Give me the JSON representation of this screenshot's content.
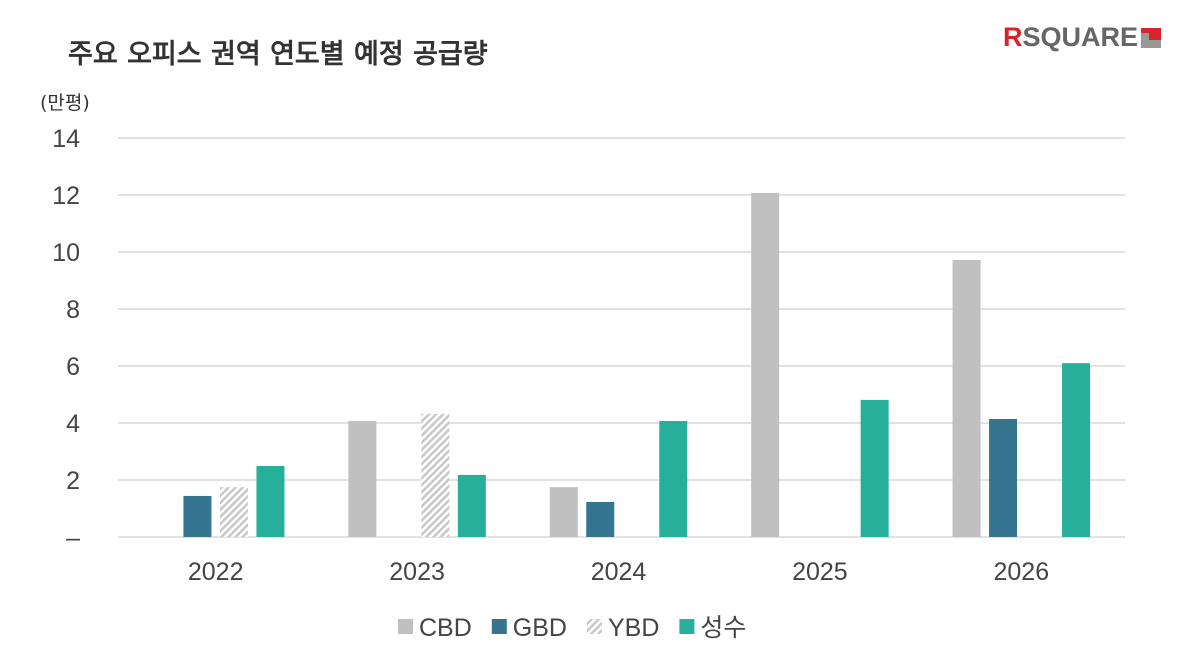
{
  "logo": "RSQUARE",
  "chart_data": {
    "type": "bar",
    "title": "주요 오피스 권역 연도별 예정 공급량",
    "ylabel": "(만평)",
    "ylim": [
      0,
      14
    ],
    "yticks": [
      0,
      2,
      4,
      6,
      8,
      10,
      12,
      14
    ],
    "ytick_labels": [
      "–",
      "2",
      "4",
      "6",
      "8",
      "10",
      "12",
      "14"
    ],
    "categories": [
      "2022",
      "2023",
      "2024",
      "2025",
      "2026"
    ],
    "grid": true,
    "legend": "bottom",
    "series": [
      {
        "name": "CBD",
        "color": "#c0c0c0",
        "values": [
          0,
          4.07,
          1.75,
          12.07,
          9.72
        ]
      },
      {
        "name": "GBD",
        "color": "#35758f",
        "values": [
          1.44,
          0,
          1.23,
          0,
          4.14
        ]
      },
      {
        "name": "YBD",
        "color": "#d0d0d0",
        "pattern": "hatch",
        "values": [
          1.75,
          4.32,
          0,
          0,
          0
        ]
      },
      {
        "name": "성수",
        "color": "#26b09b",
        "values": [
          2.49,
          2.18,
          4.07,
          4.81,
          6.1
        ]
      }
    ]
  }
}
